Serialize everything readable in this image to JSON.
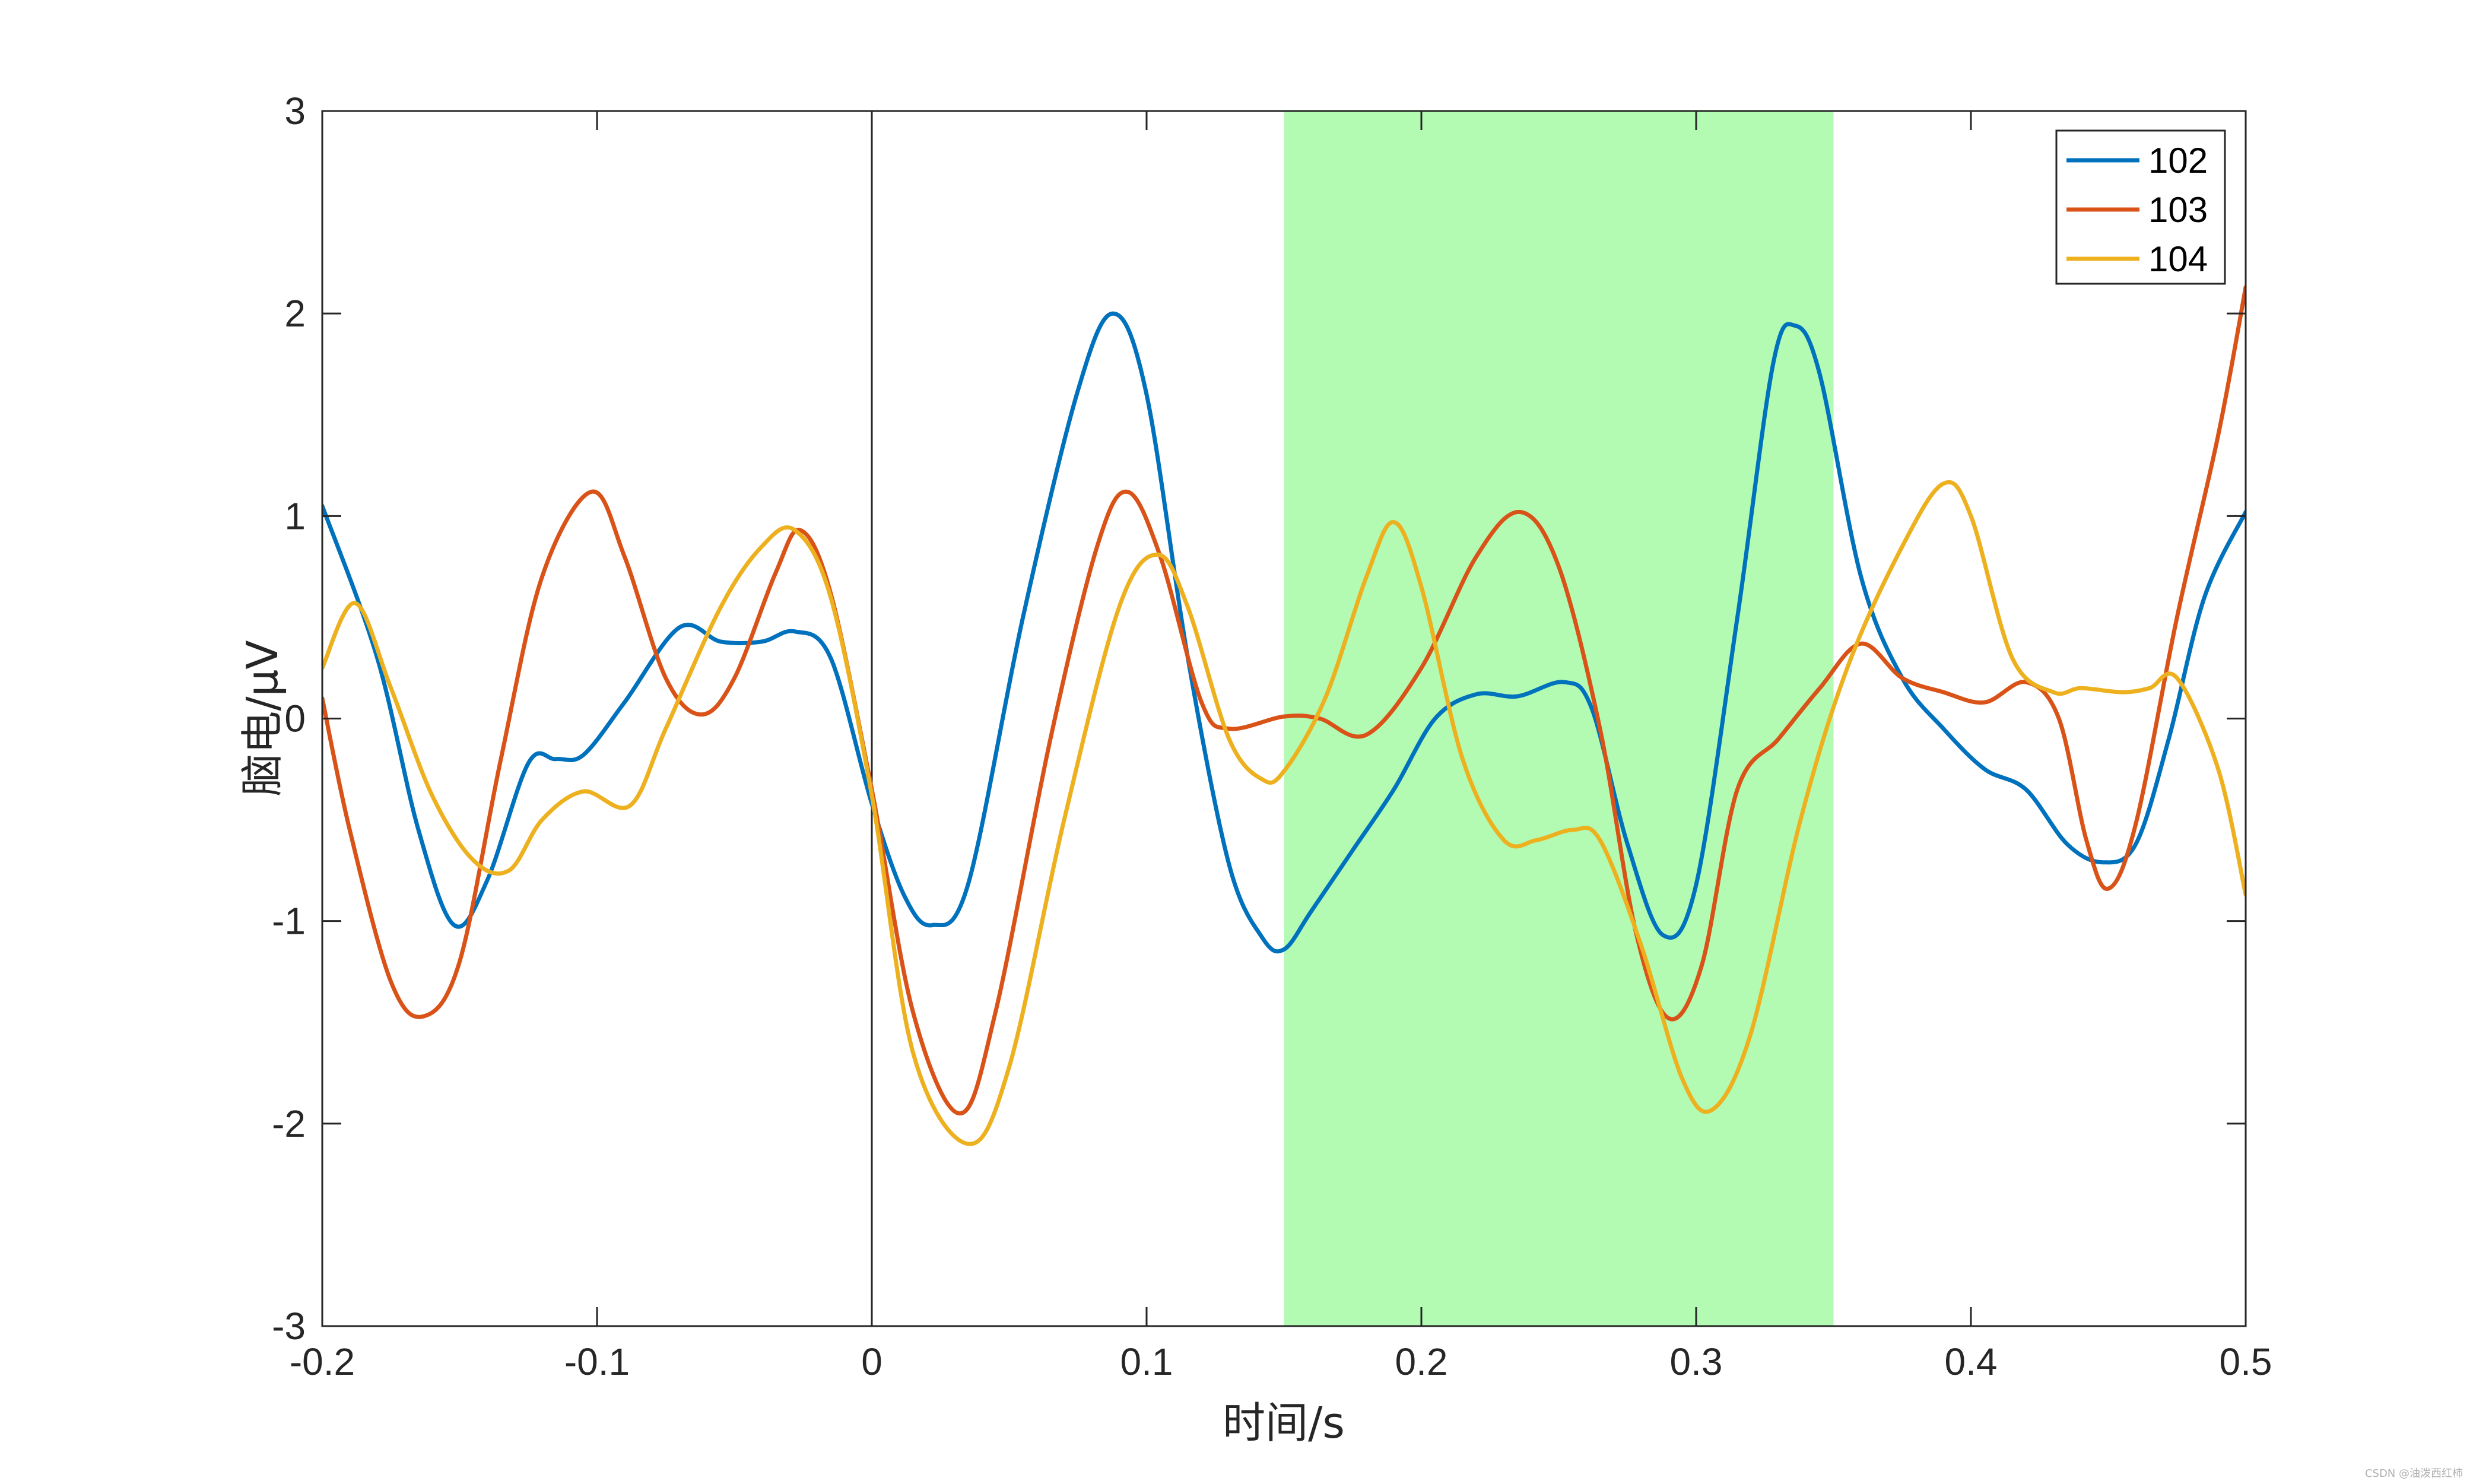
{
  "chart_data": {
    "type": "line",
    "title": "",
    "xlabel": "时间/s",
    "ylabel": "脑电/μV",
    "xlim": [
      -0.2,
      0.5
    ],
    "ylim": [
      -3,
      3
    ],
    "x_ticks": [
      -0.2,
      -0.1,
      0,
      0.1,
      0.2,
      0.3,
      0.4,
      0.5
    ],
    "x_tick_labels": [
      "-0.2",
      "-0.1",
      "0",
      "0.1",
      "0.2",
      "0.3",
      "0.4",
      "0.5"
    ],
    "y_ticks": [
      -3,
      -2,
      -1,
      0,
      1,
      2,
      3
    ],
    "y_tick_labels": [
      "-3",
      "-2",
      "-1",
      "0",
      "1",
      "2",
      "3"
    ],
    "grid": false,
    "legend_position": "top-right",
    "shaded_region": {
      "x_start": 0.15,
      "x_end": 0.35,
      "color": "#8ef98e",
      "opacity": 0.67
    },
    "vertical_line": {
      "x": 0,
      "color": "#262626"
    },
    "series": [
      {
        "name": "102",
        "color": "#0072BD",
        "points": [
          [
            -0.2,
            1.05
          ],
          [
            -0.18,
            0.3
          ],
          [
            -0.165,
            -0.55
          ],
          [
            -0.152,
            -1.02
          ],
          [
            -0.14,
            -0.8
          ],
          [
            -0.125,
            -0.22
          ],
          [
            -0.115,
            -0.2
          ],
          [
            -0.105,
            -0.18
          ],
          [
            -0.09,
            0.08
          ],
          [
            -0.07,
            0.45
          ],
          [
            -0.055,
            0.38
          ],
          [
            -0.04,
            0.38
          ],
          [
            -0.028,
            0.43
          ],
          [
            -0.015,
            0.3
          ],
          [
            0.0,
            -0.42
          ],
          [
            0.012,
            -0.88
          ],
          [
            0.022,
            -1.02
          ],
          [
            0.035,
            -0.82
          ],
          [
            0.055,
            0.5
          ],
          [
            0.075,
            1.62
          ],
          [
            0.088,
            2.0
          ],
          [
            0.1,
            1.6
          ],
          [
            0.115,
            0.3
          ],
          [
            0.13,
            -0.72
          ],
          [
            0.142,
            -1.08
          ],
          [
            0.15,
            -1.14
          ],
          [
            0.16,
            -0.95
          ],
          [
            0.175,
            -0.65
          ],
          [
            0.19,
            -0.35
          ],
          [
            0.205,
            0.0
          ],
          [
            0.22,
            0.12
          ],
          [
            0.235,
            0.11
          ],
          [
            0.252,
            0.18
          ],
          [
            0.262,
            0.05
          ],
          [
            0.275,
            -0.62
          ],
          [
            0.288,
            -1.07
          ],
          [
            0.3,
            -0.82
          ],
          [
            0.315,
            0.5
          ],
          [
            0.328,
            1.75
          ],
          [
            0.336,
            1.94
          ],
          [
            0.345,
            1.7
          ],
          [
            0.36,
            0.7
          ],
          [
            0.375,
            0.2
          ],
          [
            0.39,
            -0.05
          ],
          [
            0.405,
            -0.25
          ],
          [
            0.42,
            -0.35
          ],
          [
            0.435,
            -0.62
          ],
          [
            0.448,
            -0.71
          ],
          [
            0.46,
            -0.62
          ],
          [
            0.472,
            -0.1
          ],
          [
            0.485,
            0.6
          ],
          [
            0.5,
            1.02
          ]
        ]
      },
      {
        "name": "103",
        "color": "#D95319",
        "points": [
          [
            -0.2,
            0.1
          ],
          [
            -0.19,
            -0.55
          ],
          [
            -0.175,
            -1.3
          ],
          [
            -0.163,
            -1.47
          ],
          [
            -0.15,
            -1.2
          ],
          [
            -0.135,
            -0.2
          ],
          [
            -0.12,
            0.7
          ],
          [
            -0.102,
            1.12
          ],
          [
            -0.09,
            0.8
          ],
          [
            -0.075,
            0.2
          ],
          [
            -0.062,
            0.02
          ],
          [
            -0.05,
            0.2
          ],
          [
            -0.035,
            0.72
          ],
          [
            -0.026,
            0.93
          ],
          [
            -0.015,
            0.62
          ],
          [
            0.0,
            -0.35
          ],
          [
            0.015,
            -1.45
          ],
          [
            0.032,
            -1.95
          ],
          [
            0.045,
            -1.45
          ],
          [
            0.065,
            -0.1
          ],
          [
            0.082,
            0.85
          ],
          [
            0.093,
            1.12
          ],
          [
            0.105,
            0.8
          ],
          [
            0.12,
            0.08
          ],
          [
            0.13,
            -0.05
          ],
          [
            0.15,
            0.01
          ],
          [
            0.163,
            0.0
          ],
          [
            0.18,
            -0.08
          ],
          [
            0.2,
            0.25
          ],
          [
            0.22,
            0.8
          ],
          [
            0.236,
            1.02
          ],
          [
            0.25,
            0.75
          ],
          [
            0.265,
            -0.05
          ],
          [
            0.278,
            -1.05
          ],
          [
            0.29,
            -1.48
          ],
          [
            0.302,
            -1.22
          ],
          [
            0.315,
            -0.35
          ],
          [
            0.33,
            -0.1
          ],
          [
            0.345,
            0.15
          ],
          [
            0.36,
            0.37
          ],
          [
            0.375,
            0.2
          ],
          [
            0.39,
            0.13
          ],
          [
            0.405,
            0.08
          ],
          [
            0.42,
            0.18
          ],
          [
            0.432,
            0.0
          ],
          [
            0.442,
            -0.6
          ],
          [
            0.45,
            -0.84
          ],
          [
            0.46,
            -0.52
          ],
          [
            0.475,
            0.5
          ],
          [
            0.49,
            1.4
          ],
          [
            0.5,
            2.13
          ]
        ]
      },
      {
        "name": "104",
        "color": "#EDB120",
        "points": [
          [
            -0.2,
            0.25
          ],
          [
            -0.188,
            0.57
          ],
          [
            -0.175,
            0.15
          ],
          [
            -0.16,
            -0.38
          ],
          [
            -0.145,
            -0.7
          ],
          [
            -0.132,
            -0.75
          ],
          [
            -0.12,
            -0.5
          ],
          [
            -0.105,
            -0.36
          ],
          [
            -0.088,
            -0.43
          ],
          [
            -0.075,
            -0.05
          ],
          [
            -0.055,
            0.55
          ],
          [
            -0.04,
            0.85
          ],
          [
            -0.028,
            0.93
          ],
          [
            -0.015,
            0.6
          ],
          [
            0.0,
            -0.38
          ],
          [
            0.015,
            -1.65
          ],
          [
            0.035,
            -2.1
          ],
          [
            0.05,
            -1.72
          ],
          [
            0.07,
            -0.5
          ],
          [
            0.09,
            0.55
          ],
          [
            0.104,
            0.81
          ],
          [
            0.115,
            0.55
          ],
          [
            0.13,
            -0.1
          ],
          [
            0.142,
            -0.3
          ],
          [
            0.15,
            -0.26
          ],
          [
            0.165,
            0.1
          ],
          [
            0.18,
            0.7
          ],
          [
            0.19,
            0.97
          ],
          [
            0.2,
            0.65
          ],
          [
            0.215,
            -0.2
          ],
          [
            0.23,
            -0.6
          ],
          [
            0.242,
            -0.6
          ],
          [
            0.255,
            -0.55
          ],
          [
            0.265,
            -0.6
          ],
          [
            0.28,
            -1.12
          ],
          [
            0.295,
            -1.78
          ],
          [
            0.306,
            -1.93
          ],
          [
            0.32,
            -1.55
          ],
          [
            0.338,
            -0.5
          ],
          [
            0.355,
            0.25
          ],
          [
            0.375,
            0.85
          ],
          [
            0.39,
            1.16
          ],
          [
            0.4,
            1.0
          ],
          [
            0.415,
            0.3
          ],
          [
            0.43,
            0.13
          ],
          [
            0.44,
            0.15
          ],
          [
            0.455,
            0.13
          ],
          [
            0.465,
            0.15
          ],
          [
            0.475,
            0.2
          ],
          [
            0.49,
            -0.25
          ],
          [
            0.5,
            -0.87
          ]
        ]
      }
    ]
  },
  "watermark": "CSDN @油泼西红柿"
}
